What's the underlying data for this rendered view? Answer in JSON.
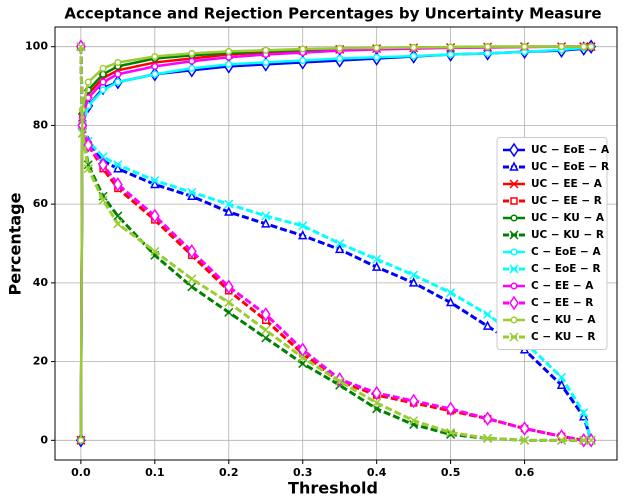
{
  "chart_data": {
    "type": "line",
    "title": "Acceptance and Rejection Percentages by Uncertainty Measure",
    "x_label": "Threshold",
    "y_label": "Percentage",
    "x": [
      0,
      0.002,
      0.01,
      0.03,
      0.05,
      0.1,
      0.15,
      0.2,
      0.25,
      0.3,
      0.35,
      0.4,
      0.45,
      0.5,
      0.55,
      0.6,
      0.65,
      0.68,
      0.69
    ],
    "xlim": [
      -0.035,
      0.725
    ],
    "ylim": [
      -5,
      105
    ],
    "xticks": [
      {
        "value": 0,
        "label": "0.0"
      },
      0.1,
      0.2,
      0.3,
      0.4,
      0.5,
      0.6
    ],
    "yticks": [
      0,
      20,
      40,
      60,
      80,
      100
    ],
    "grid": true,
    "legend": "center right",
    "series": [
      {
        "name": "UC − EoE − A",
        "color": "#0000ff",
        "linestyle": "solid",
        "marker": "diamond",
        "values": [
          0,
          80,
          85,
          89.5,
          91,
          93,
          94,
          95,
          95.5,
          96,
          96.5,
          97,
          97.5,
          98,
          98.3,
          98.7,
          99,
          99.5,
          100
        ]
      },
      {
        "name": "UC − EoE − R",
        "color": "#0000ff",
        "linestyle": "dashed",
        "marker": "triangle",
        "values": [
          100,
          80,
          76,
          71,
          69,
          65,
          62,
          58,
          55,
          52,
          48.5,
          44,
          40,
          35,
          29,
          23,
          14,
          6,
          0
        ]
      },
      {
        "name": "UC − EE − A",
        "color": "#ff0000",
        "linestyle": "solid",
        "marker": "x",
        "values": [
          0,
          82,
          88,
          92,
          94,
          96,
          97,
          98,
          98.5,
          99,
          99.3,
          99.5,
          99.7,
          99.8,
          99.9,
          100,
          100,
          100,
          100
        ]
      },
      {
        "name": "UC − EE − R",
        "color": "#ff0000",
        "linestyle": "dashed",
        "marker": "square",
        "values": [
          100,
          80,
          75,
          69,
          64,
          56,
          47,
          38,
          30.5,
          22,
          15,
          11.5,
          9.5,
          7.5,
          5.5,
          3,
          1,
          0,
          0
        ]
      },
      {
        "name": "UC − KU − A",
        "color": "#008000",
        "linestyle": "solid",
        "marker": "circle",
        "values": [
          0,
          83,
          89,
          93,
          95,
          97,
          97.8,
          98.4,
          98.8,
          99.2,
          99.5,
          99.7,
          99.8,
          99.9,
          100,
          100,
          100,
          100,
          100
        ]
      },
      {
        "name": "UC − KU − R",
        "color": "#008000",
        "linestyle": "dashed",
        "marker": "x",
        "values": [
          100,
          78,
          70,
          62,
          57,
          47,
          39,
          32.5,
          26,
          19.5,
          14,
          8,
          4,
          1.5,
          0.5,
          0,
          0,
          0,
          0
        ]
      },
      {
        "name": "C − EoE − A",
        "color": "#00ffff",
        "linestyle": "solid",
        "marker": "circle",
        "values": [
          0,
          80,
          85,
          89,
          91,
          93,
          94.5,
          95.5,
          96,
          96.5,
          97,
          97.3,
          97.6,
          98,
          98.3,
          98.7,
          99.2,
          99.7,
          100
        ]
      },
      {
        "name": "C − EoE − R",
        "color": "#00ffff",
        "linestyle": "dashed",
        "marker": "x",
        "values": [
          100,
          80,
          76,
          72,
          70,
          66,
          63,
          60,
          57,
          54.5,
          50,
          46,
          42,
          37.5,
          32,
          25,
          16,
          7,
          0
        ]
      },
      {
        "name": "C − EE − A",
        "color": "#ff00ff",
        "linestyle": "solid",
        "marker": "circle",
        "values": [
          0,
          82,
          87,
          91,
          93,
          95,
          96.3,
          97.3,
          98,
          98.5,
          99,
          99.3,
          99.5,
          99.7,
          99.8,
          99.9,
          100,
          100,
          100
        ]
      },
      {
        "name": "C − EE − R",
        "color": "#ff00ff",
        "linestyle": "dashed",
        "marker": "diamond",
        "values": [
          100,
          80,
          75,
          70,
          65,
          57,
          48,
          39,
          32,
          23,
          15.5,
          12,
          10,
          8,
          5.5,
          3,
          1,
          0,
          0
        ]
      },
      {
        "name": "C − KU − A",
        "color": "#9acd32",
        "linestyle": "solid",
        "marker": "circle",
        "values": [
          0,
          84,
          91,
          94.5,
          96,
          97.5,
          98.3,
          98.8,
          99.1,
          99.4,
          99.6,
          99.7,
          99.8,
          99.9,
          100,
          100,
          100,
          100,
          100
        ]
      },
      {
        "name": "C − KU − R",
        "color": "#9acd32",
        "linestyle": "dashed",
        "marker": "x",
        "values": [
          100,
          78,
          69,
          61,
          55,
          48,
          41,
          35,
          28,
          21,
          15,
          9.5,
          5,
          2,
          0.5,
          0,
          0,
          0,
          0
        ]
      }
    ]
  }
}
